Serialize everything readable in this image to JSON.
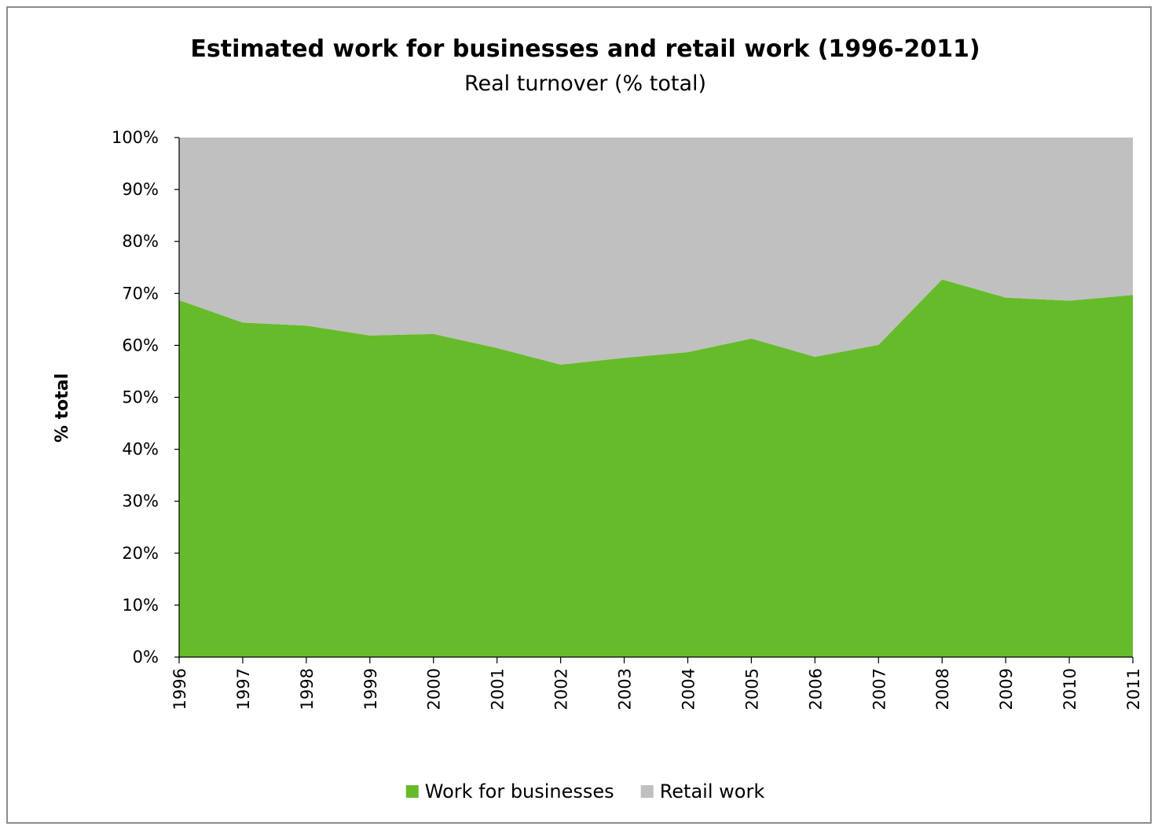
{
  "chart_data": {
    "type": "area",
    "stacked": true,
    "percent_stacked": true,
    "title": "Estimated work for businesses and retail work (1996-2011)",
    "subtitle": "Real turnover (% total)",
    "xlabel": "",
    "ylabel": "% total",
    "x": [
      "1996",
      "1997",
      "1998",
      "1999",
      "2000",
      "2001",
      "2002",
      "2003",
      "2004",
      "2005",
      "2006",
      "2007",
      "2008",
      "2009",
      "2010",
      "2011"
    ],
    "y_ticks": [
      "0%",
      "10%",
      "20%",
      "30%",
      "40%",
      "50%",
      "60%",
      "70%",
      "80%",
      "90%",
      "100%"
    ],
    "ylim": [
      0,
      100
    ],
    "grid": false,
    "legend_position": "bottom",
    "series": [
      {
        "name": "Work for businesses",
        "color": "#66bb2b",
        "values": [
          68.7,
          64.4,
          63.8,
          61.9,
          62.2,
          59.5,
          56.3,
          57.6,
          58.7,
          61.3,
          57.8,
          60.1,
          72.7,
          69.2,
          68.6,
          69.7
        ]
      },
      {
        "name": "Retail work",
        "color": "#c0c0c0",
        "values": [
          31.3,
          35.6,
          36.2,
          38.1,
          37.8,
          40.5,
          43.7,
          42.4,
          41.3,
          38.7,
          42.2,
          39.9,
          27.3,
          30.8,
          31.4,
          30.3
        ]
      }
    ]
  }
}
